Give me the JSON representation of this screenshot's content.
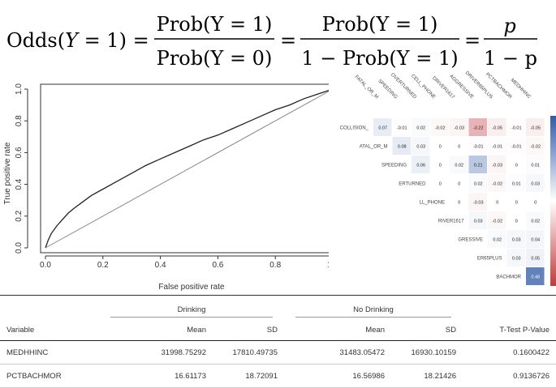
{
  "formula": {
    "lhs_a": "Odds(",
    "lhs_y": "Y",
    "lhs_b": " = 1) =",
    "f1_num": "Prob(Y = 1)",
    "f1_den": "Prob(Y = 0)",
    "eq2": "=",
    "f2_num": "Prob(Y = 1)",
    "f2_den": "1 − Prob(Y = 1)",
    "eq3": "=",
    "f3_num": "p",
    "f3_den": "1 − p"
  },
  "colors": {
    "roc_curve": "#222222",
    "diagonal": "#888888",
    "corr_positive": "#3b63a9",
    "corr_negative": "#c0313b",
    "colorbar_top": "#2f5aa8",
    "colorbar_bottom": "#c03a3a"
  },
  "roc_chart": {
    "type": "line",
    "xlabel": "False positive rate",
    "ylabel": "True positive rate",
    "xlim": [
      0,
      1
    ],
    "ylim": [
      0,
      1
    ],
    "xticks": [
      "0.0",
      "0.2",
      "0.4",
      "0.6",
      "0.8",
      "1.0"
    ],
    "yticks": [
      "0.0",
      "0.2",
      "0.4",
      "0.6",
      "0.8",
      "1.0"
    ],
    "series": [
      {
        "x": [
          0,
          0.01,
          0.02,
          0.04,
          0.06,
          0.08,
          0.1,
          0.13,
          0.16,
          0.2,
          0.25,
          0.3,
          0.35,
          0.4,
          0.45,
          0.5,
          0.55,
          0.6,
          0.65,
          0.7,
          0.75,
          0.8,
          0.85,
          0.9,
          0.95,
          1.0
        ],
        "y": [
          0,
          0.05,
          0.09,
          0.14,
          0.18,
          0.22,
          0.25,
          0.29,
          0.33,
          0.37,
          0.42,
          0.47,
          0.52,
          0.56,
          0.6,
          0.64,
          0.68,
          0.71,
          0.75,
          0.79,
          0.83,
          0.87,
          0.9,
          0.94,
          0.97,
          1.0
        ]
      },
      {
        "x": [
          0,
          1
        ],
        "y": [
          0,
          1
        ]
      }
    ]
  },
  "corr_chart": {
    "type": "heatmap",
    "col_labels": [
      "FATAL_OR_M",
      "SPEEDING",
      "OVERTURNED",
      "CELL_PHONE",
      "DRIVER1617",
      "AGGRESSIVE",
      "DRIVER65PLUS",
      "PCTBACHMOR",
      "MEDHHINC"
    ],
    "row_labels": [
      "COLLISION_",
      "ATAL_OR_M",
      "SPEEDING",
      "ERTURNED",
      "LL_PHONE",
      "RIVER1617",
      "GRESSIVE",
      "ER65PLUS",
      "BACHMOR"
    ],
    "values": [
      [
        0.07,
        -0.01,
        0.02,
        -0.02,
        -0.03,
        -0.22,
        -0.05,
        -0.01,
        -0.05
      ],
      [
        null,
        0.08,
        0.03,
        0,
        0,
        -0.01,
        -0.01,
        -0.01,
        -0.02
      ],
      [
        null,
        null,
        0.06,
        0,
        0.02,
        0.21,
        -0.03,
        0,
        0.01
      ],
      [
        null,
        null,
        null,
        0,
        0,
        0.02,
        -0.02,
        0.01,
        0.03
      ],
      [
        null,
        null,
        null,
        null,
        0,
        -0.03,
        0,
        0,
        0
      ],
      [
        null,
        null,
        null,
        null,
        null,
        0.03,
        -0.02,
        0,
        0.02
      ],
      [
        null,
        null,
        null,
        null,
        null,
        null,
        0.02,
        0.03,
        0.04
      ],
      [
        null,
        null,
        null,
        null,
        null,
        null,
        null,
        0.03,
        0.05
      ],
      [
        null,
        null,
        null,
        null,
        null,
        null,
        null,
        null,
        0.48
      ]
    ],
    "value_labels": [
      [
        "0.07",
        "-0.01",
        "0.02",
        "-0.02",
        "-0.03",
        "-0.22",
        "-0.05",
        "-0.01",
        "-0.05"
      ],
      [
        "",
        "0.08",
        "0.03",
        "0",
        "0",
        "-0.01",
        "-0.01",
        "-0.01",
        "-0.02"
      ],
      [
        "",
        "",
        "0.06",
        "0",
        "0.02",
        "0.21",
        "-0.03",
        "0",
        "0.01"
      ],
      [
        "",
        "",
        "",
        "0",
        "0",
        "0.02",
        "-0.02",
        "0.01",
        "0.03"
      ],
      [
        "",
        "",
        "",
        "",
        "0",
        "-0.03",
        "0",
        "0",
        "0"
      ],
      [
        "",
        "",
        "",
        "",
        "",
        "0.03",
        "-0.02",
        "0",
        "0.02"
      ],
      [
        "",
        "",
        "",
        "",
        "",
        "",
        "0.02",
        "0.03",
        "0.04"
      ],
      [
        "",
        "",
        "",
        "",
        "",
        "",
        "",
        "0.03",
        "0.05"
      ],
      [
        "",
        "",
        "",
        "",
        "",
        "",
        "",
        "",
        "0.48"
      ]
    ]
  },
  "table": {
    "group_drinking": "Drinking",
    "group_no_drinking": "No Drinking",
    "headers": [
      "Variable",
      "Mean",
      "SD",
      "Mean",
      "SD",
      "T-Test P-Value"
    ],
    "rows": [
      [
        "MEDHHINC",
        "31998.75292",
        "17810.49735",
        "31483.05472",
        "16930.10159",
        "0.1600422"
      ],
      [
        "PCTBACHMOR",
        "16.61173",
        "18.72091",
        "16.56986",
        "18.21426",
        "0.9136726"
      ]
    ]
  }
}
